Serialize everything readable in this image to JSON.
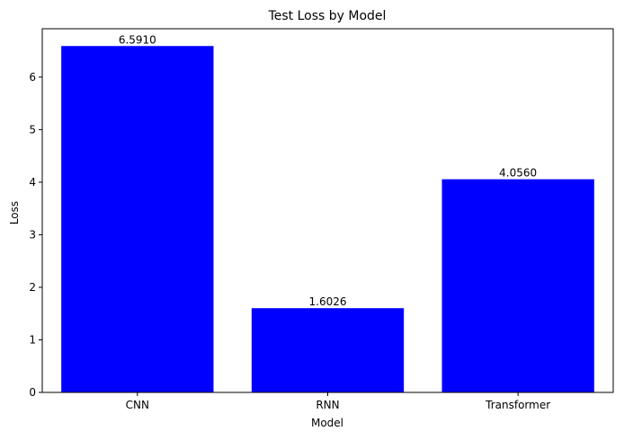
{
  "chart_data": {
    "type": "bar",
    "title": "Test Loss by Model",
    "xlabel": "Model",
    "ylabel": "Loss",
    "categories": [
      "CNN",
      "RNN",
      "Transformer"
    ],
    "values": [
      6.591,
      1.6026,
      4.056
    ],
    "value_labels": [
      "6.5910",
      "1.6026",
      "4.0560"
    ],
    "yticks": [
      0,
      1,
      2,
      3,
      4,
      5,
      6
    ],
    "ylim": [
      0,
      6.92
    ],
    "bar_color": "#0000ff",
    "grid": false,
    "legend": "none"
  }
}
